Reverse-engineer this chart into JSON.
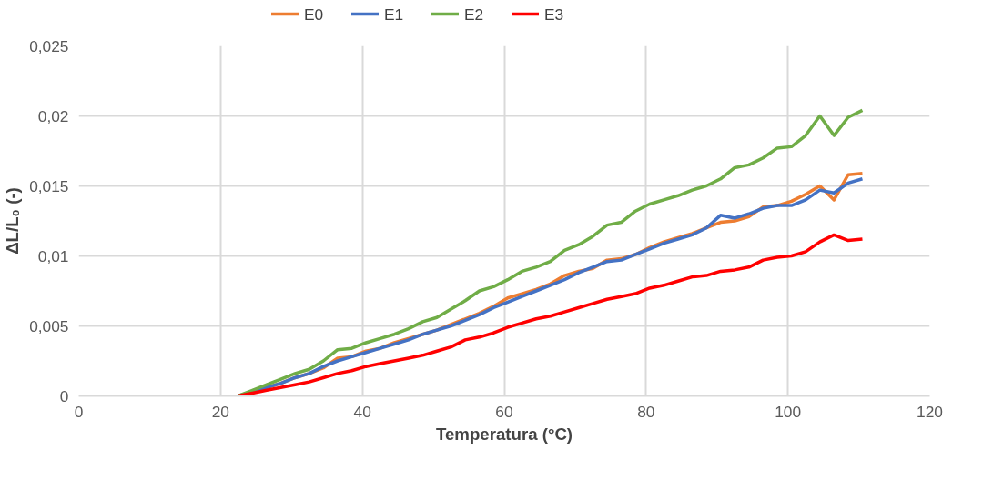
{
  "chart_data": {
    "type": "line",
    "xlabel": "Temperatura (°C)",
    "ylabel": "ΔL/L₀ (-)",
    "x": [
      22.5,
      24.5,
      26.5,
      28.5,
      30.5,
      32.5,
      34.5,
      36.5,
      38.5,
      40.5,
      42.5,
      44.5,
      46.5,
      48.5,
      50.5,
      52.5,
      54.5,
      56.5,
      58.5,
      60.5,
      62.5,
      64.5,
      66.5,
      68.5,
      70.5,
      72.5,
      74.5,
      76.5,
      78.5,
      80.5,
      82.5,
      84.5,
      86.5,
      88.5,
      90.5,
      92.5,
      94.5,
      96.5,
      98.5,
      100.5,
      102.5,
      104.5,
      106.5,
      108.5,
      110.5
    ],
    "series": [
      {
        "name": "E0",
        "color": "#ed7d31",
        "values": [
          0,
          0.0003,
          0.0006,
          0.0009,
          0.0013,
          0.0016,
          0.002,
          0.0027,
          0.0028,
          0.0032,
          0.0034,
          0.0038,
          0.0041,
          0.0044,
          0.0047,
          0.0051,
          0.0055,
          0.0059,
          0.0064,
          0.007,
          0.0073,
          0.0076,
          0.008,
          0.0086,
          0.0089,
          0.0091,
          0.0097,
          0.0098,
          0.0101,
          0.0106,
          0.011,
          0.0113,
          0.0116,
          0.012,
          0.0124,
          0.0125,
          0.0128,
          0.0135,
          0.0136,
          0.0139,
          0.0144,
          0.015,
          0.014,
          0.0158,
          0.0159
        ]
      },
      {
        "name": "E1",
        "color": "#4472c4",
        "values": [
          0,
          0.0003,
          0.0006,
          0.0009,
          0.0013,
          0.0016,
          0.0021,
          0.0025,
          0.0028,
          0.0031,
          0.0034,
          0.0037,
          0.004,
          0.0044,
          0.0047,
          0.005,
          0.0054,
          0.0058,
          0.0063,
          0.0067,
          0.0071,
          0.0075,
          0.0079,
          0.0083,
          0.0088,
          0.0092,
          0.0096,
          0.0097,
          0.0101,
          0.0105,
          0.0109,
          0.0112,
          0.0115,
          0.012,
          0.0129,
          0.0127,
          0.013,
          0.0134,
          0.0136,
          0.0136,
          0.014,
          0.0147,
          0.0145,
          0.0152,
          0.0155
        ]
      },
      {
        "name": "E2",
        "color": "#70ad47",
        "values": [
          0,
          0.0004,
          0.0008,
          0.0012,
          0.0016,
          0.0019,
          0.0025,
          0.0033,
          0.0034,
          0.0038,
          0.0041,
          0.0044,
          0.0048,
          0.0053,
          0.0056,
          0.0062,
          0.0068,
          0.0075,
          0.0078,
          0.0083,
          0.0089,
          0.0092,
          0.0096,
          0.0104,
          0.0108,
          0.0114,
          0.0122,
          0.0124,
          0.0132,
          0.0137,
          0.014,
          0.0143,
          0.0147,
          0.015,
          0.0155,
          0.0163,
          0.0165,
          0.017,
          0.0177,
          0.0178,
          0.0186,
          0.02,
          0.0186,
          0.0199,
          0.0204
        ]
      },
      {
        "name": "E3",
        "color": "#ff0000",
        "values": [
          0,
          0.0002,
          0.0004,
          0.0006,
          0.0008,
          0.001,
          0.0013,
          0.0016,
          0.0018,
          0.0021,
          0.0023,
          0.0025,
          0.0027,
          0.0029,
          0.0032,
          0.0035,
          0.004,
          0.0042,
          0.0045,
          0.0049,
          0.0052,
          0.0055,
          0.0057,
          0.006,
          0.0063,
          0.0066,
          0.0069,
          0.0071,
          0.0073,
          0.0077,
          0.0079,
          0.0082,
          0.0085,
          0.0086,
          0.0089,
          0.009,
          0.0092,
          0.0097,
          0.0099,
          0.01,
          0.0103,
          0.011,
          0.0115,
          0.0111,
          0.0112
        ]
      }
    ],
    "xlim": [
      0,
      120
    ],
    "xticks": [
      0,
      20,
      40,
      60,
      80,
      100,
      120
    ],
    "ylim": [
      0,
      0.025
    ],
    "yticks": [
      0,
      {
        "value": 0.005,
        "label": "0,005"
      },
      {
        "value": 0.01,
        "label": "0,01"
      },
      {
        "value": 0.015,
        "label": "0,015"
      },
      {
        "value": 0.02,
        "label": "0,02"
      },
      {
        "value": 0.025,
        "label": "0,025"
      }
    ],
    "grid": true,
    "legend": "top",
    "marker": "none",
    "line_style": "solid"
  }
}
